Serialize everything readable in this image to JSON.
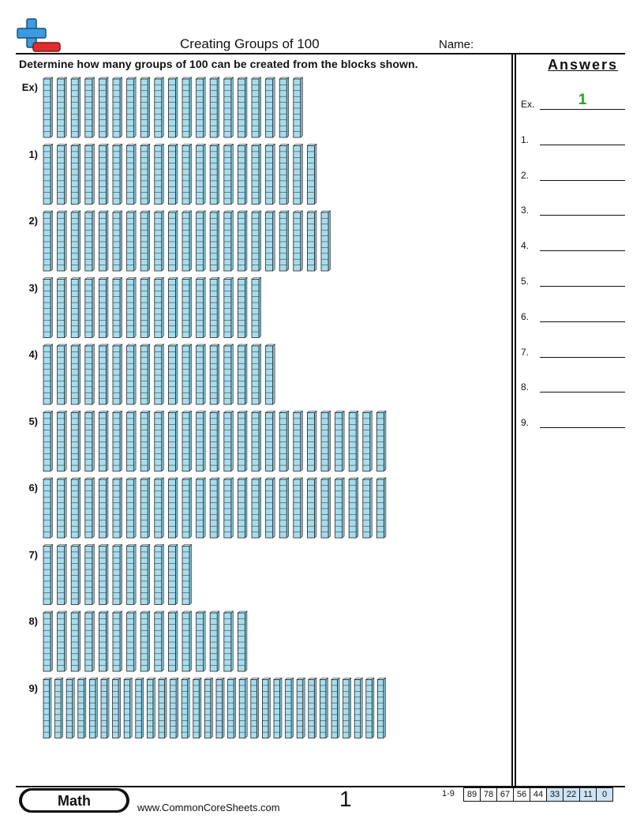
{
  "header": {
    "title": "Creating Groups of 100",
    "name_label": "Name:"
  },
  "instructions": "Determine how many groups of 100 can be created from the blocks shown.",
  "problems": [
    {
      "label": "Ex)",
      "rods": 19
    },
    {
      "label": "1)",
      "rods": 20
    },
    {
      "label": "2)",
      "rods": 21
    },
    {
      "label": "3)",
      "rods": 16
    },
    {
      "label": "4)",
      "rods": 17
    },
    {
      "label": "5)",
      "rods": 25
    },
    {
      "label": "6)",
      "rods": 25
    },
    {
      "label": "7)",
      "rods": 11
    },
    {
      "label": "8)",
      "rods": 15
    },
    {
      "label": "9)",
      "rods": 30
    }
  ],
  "answers": {
    "title": "Answers",
    "rows": [
      {
        "label": "Ex.",
        "value": "1"
      },
      {
        "label": "1.",
        "value": ""
      },
      {
        "label": "2.",
        "value": ""
      },
      {
        "label": "3.",
        "value": ""
      },
      {
        "label": "4.",
        "value": ""
      },
      {
        "label": "5.",
        "value": ""
      },
      {
        "label": "6.",
        "value": ""
      },
      {
        "label": "7.",
        "value": ""
      },
      {
        "label": "8.",
        "value": ""
      },
      {
        "label": "9.",
        "value": ""
      }
    ]
  },
  "footer": {
    "subject": "Math",
    "website": "www.CommonCoreSheets.com",
    "page_number": "1",
    "key_label": "1-9",
    "key_values": [
      "89",
      "78",
      "67",
      "56",
      "44",
      "33",
      "22",
      "11",
      "0"
    ]
  },
  "colors": {
    "rod_fill": "#a8dcec",
    "rod_stroke": "#222222",
    "answer_green": "#1fa51f",
    "logo_blue": "#3c9be0",
    "logo_red": "#e02d2d",
    "key_highlight": "#cfe3f6"
  },
  "icons": {
    "logo": "plus-minus-logo-icon",
    "rod": "ten-rod-block-icon"
  }
}
